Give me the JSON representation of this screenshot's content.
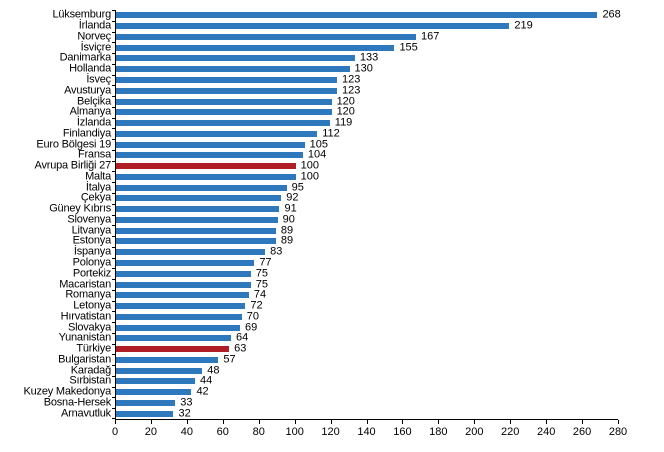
{
  "chart_data": {
    "type": "bar",
    "orientation": "horizontal",
    "title": "",
    "grid": false,
    "legend": "none",
    "bar_color": "#2E79BD",
    "highlight_color": "#AF1E24",
    "value_labels": true,
    "xaxis": {
      "min": 0,
      "max": 280,
      "step": 20,
      "ticks": [
        0,
        20,
        40,
        60,
        80,
        100,
        120,
        140,
        160,
        180,
        200,
        220,
        240,
        260,
        280
      ]
    },
    "categories": [
      "Lüksemburg",
      "İrlanda",
      "Norveç",
      "İsviçre",
      "Danimarka",
      "Hollanda",
      "İsveç",
      "Avusturya",
      "Belçika",
      "Almanya",
      "İzlanda",
      "Finlandiya",
      "Euro Bölgesi 19",
      "Fransa",
      "Avrupa Birliği 27",
      "Malta",
      "İtalya",
      "Çekya",
      "Güney Kıbrıs",
      "Slovenya",
      "Litvanya",
      "Estonya",
      "İspanya",
      "Polonya",
      "Portekiz",
      "Macaristan",
      "Romanya",
      "Letonya",
      "Hırvatistan",
      "Slovakya",
      "Yunanistan",
      "Türkiye",
      "Bulgaristan",
      "Karadağ",
      "Sırbistan",
      "Kuzey Makedonya",
      "Bosna-Hersek",
      "Arnavutluk"
    ],
    "values": [
      268,
      219,
      167,
      155,
      133,
      130,
      123,
      123,
      120,
      120,
      119,
      112,
      105,
      104,
      100,
      100,
      95,
      92,
      91,
      90,
      89,
      89,
      83,
      77,
      75,
      75,
      74,
      72,
      70,
      69,
      64,
      63,
      57,
      48,
      44,
      42,
      33,
      32
    ],
    "items": [
      {
        "label": "Lüksemburg",
        "value": 268,
        "highlight": false
      },
      {
        "label": "İrlanda",
        "value": 219,
        "highlight": false
      },
      {
        "label": "Norveç",
        "value": 167,
        "highlight": false
      },
      {
        "label": "İsviçre",
        "value": 155,
        "highlight": false
      },
      {
        "label": "Danimarka",
        "value": 133,
        "highlight": false
      },
      {
        "label": "Hollanda",
        "value": 130,
        "highlight": false
      },
      {
        "label": "İsveç",
        "value": 123,
        "highlight": false
      },
      {
        "label": "Avusturya",
        "value": 123,
        "highlight": false
      },
      {
        "label": "Belçika",
        "value": 120,
        "highlight": false
      },
      {
        "label": "Almanya",
        "value": 120,
        "highlight": false
      },
      {
        "label": "İzlanda",
        "value": 119,
        "highlight": false
      },
      {
        "label": "Finlandiya",
        "value": 112,
        "highlight": false
      },
      {
        "label": "Euro Bölgesi 19",
        "value": 105,
        "highlight": false
      },
      {
        "label": "Fransa",
        "value": 104,
        "highlight": false
      },
      {
        "label": "Avrupa Birliği 27",
        "value": 100,
        "highlight": true
      },
      {
        "label": "Malta",
        "value": 100,
        "highlight": false
      },
      {
        "label": "İtalya",
        "value": 95,
        "highlight": false
      },
      {
        "label": "Çekya",
        "value": 92,
        "highlight": false
      },
      {
        "label": "Güney Kıbrıs",
        "value": 91,
        "highlight": false
      },
      {
        "label": "Slovenya",
        "value": 90,
        "highlight": false
      },
      {
        "label": "Litvanya",
        "value": 89,
        "highlight": false
      },
      {
        "label": "Estonya",
        "value": 89,
        "highlight": false
      },
      {
        "label": "İspanya",
        "value": 83,
        "highlight": false
      },
      {
        "label": "Polonya",
        "value": 77,
        "highlight": false
      },
      {
        "label": "Portekiz",
        "value": 75,
        "highlight": false
      },
      {
        "label": "Macaristan",
        "value": 75,
        "highlight": false
      },
      {
        "label": "Romanya",
        "value": 74,
        "highlight": false
      },
      {
        "label": "Letonya",
        "value": 72,
        "highlight": false
      },
      {
        "label": "Hırvatistan",
        "value": 70,
        "highlight": false
      },
      {
        "label": "Slovakya",
        "value": 69,
        "highlight": false
      },
      {
        "label": "Yunanistan",
        "value": 64,
        "highlight": false
      },
      {
        "label": "Türkiye",
        "value": 63,
        "highlight": true
      },
      {
        "label": "Bulgaristan",
        "value": 57,
        "highlight": false
      },
      {
        "label": "Karadağ",
        "value": 48,
        "highlight": false
      },
      {
        "label": "Sırbistan",
        "value": 44,
        "highlight": false
      },
      {
        "label": "Kuzey Makedonya",
        "value": 42,
        "highlight": false
      },
      {
        "label": "Bosna-Hersek",
        "value": 33,
        "highlight": false
      },
      {
        "label": "Arnavutluk",
        "value": 32,
        "highlight": false
      }
    ]
  }
}
